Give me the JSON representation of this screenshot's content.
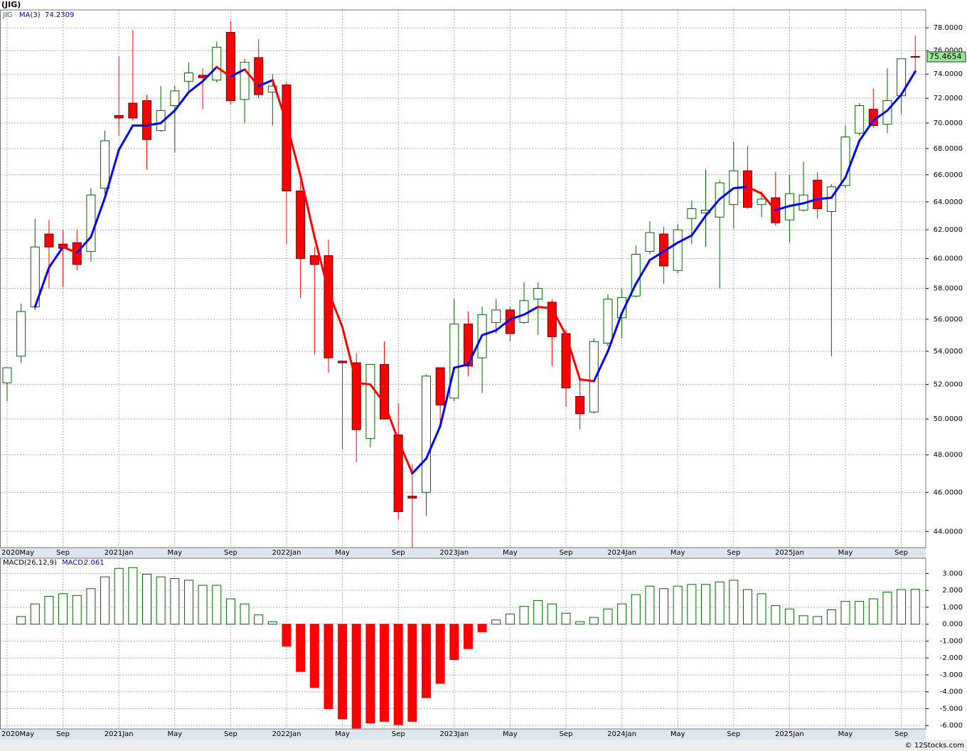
{
  "chart_data": [
    {
      "type": "candlestick",
      "title": "(JIG)",
      "symbol": "JIG",
      "categories": [
        "2020May",
        null,
        null,
        null,
        "Sep",
        null,
        null,
        null,
        "2021Jan",
        null,
        null,
        null,
        "May",
        null,
        null,
        null,
        "Sep",
        null,
        null,
        null,
        "2022Jan",
        null,
        null,
        null,
        "May",
        null,
        null,
        null,
        "Sep",
        null,
        null,
        null,
        "2023Jan",
        null,
        null,
        null,
        "May",
        null,
        null,
        null,
        "Sep",
        null,
        null,
        null,
        "2024Jan",
        null,
        null,
        null,
        "May",
        null,
        null,
        null,
        "Sep",
        null,
        null,
        null,
        "2025Jan",
        null,
        null,
        null,
        "May",
        null,
        null,
        null,
        "Sep",
        null
      ],
      "open": [
        52.1,
        53.7,
        56.8,
        61.7,
        61.0,
        61.1,
        60.5,
        65.0,
        70.6,
        71.6,
        71.8,
        69.4,
        71.4,
        73.4,
        73.9,
        73.5,
        77.6,
        71.9,
        75.4,
        72.5,
        73.1,
        64.8,
        60.2,
        60.2,
        53.4,
        53.3,
        48.9,
        53.2,
        49.1,
        45.8,
        46.0,
        53.0,
        51.2,
        55.7,
        53.6,
        55.8,
        56.6,
        55.8,
        57.3,
        57.1,
        55.1,
        51.3,
        50.4,
        54.5,
        56.1,
        57.5,
        60.5,
        61.7,
        59.2,
        62.8,
        63.2,
        62.9,
        63.8,
        66.3,
        63.8,
        64.3,
        62.7,
        63.4,
        65.6,
        63.3,
        65.2,
        69.2,
        71.1,
        69.9,
        72.2,
        75.5
      ],
      "high": [
        53.0,
        57.0,
        62.8,
        62.7,
        62.0,
        62.0,
        65.0,
        69.4,
        75.5,
        77.8,
        72.3,
        73.0,
        73.0,
        75.0,
        74.5,
        76.8,
        78.6,
        75.3,
        77.0,
        74.0,
        73.3,
        65.5,
        60.8,
        61.3,
        53.4,
        53.9,
        53.2,
        54.6,
        50.9,
        47.5,
        52.6,
        53.0,
        57.3,
        56.5,
        56.8,
        57.3,
        56.8,
        58.4,
        58.4,
        57.3,
        55.4,
        52.3,
        54.8,
        57.6,
        58.0,
        60.9,
        62.6,
        62.2,
        62.4,
        64.1,
        66.4,
        65.6,
        68.5,
        68.2,
        64.8,
        66.2,
        66.0,
        67.0,
        66.2,
        65.3,
        69.8,
        71.6,
        72.8,
        74.5,
        75.3,
        77.3
      ],
      "low": [
        51.0,
        53.3,
        56.6,
        58.0,
        58.1,
        59.2,
        59.8,
        64.6,
        69.0,
        70.2,
        66.4,
        69.3,
        67.7,
        72.6,
        71.1,
        73.3,
        71.5,
        70.0,
        72.0,
        69.8,
        61.0,
        57.4,
        53.8,
        52.7,
        48.3,
        47.6,
        48.4,
        50.0,
        44.6,
        43.2,
        44.8,
        49.6,
        51.0,
        52.5,
        51.5,
        55.1,
        54.6,
        55.7,
        55.0,
        53.1,
        50.7,
        49.4,
        50.3,
        54.3,
        54.8,
        57.4,
        60.3,
        58.3,
        59.0,
        61.0,
        60.8,
        58.0,
        62.1,
        63.5,
        62.9,
        62.3,
        61.1,
        63.3,
        62.8,
        53.7,
        65.0,
        69.0,
        69.6,
        69.2,
        70.7,
        74.0
      ],
      "close": [
        53.0,
        56.5,
        60.8,
        60.8,
        60.7,
        59.6,
        64.5,
        68.6,
        70.4,
        70.4,
        68.7,
        71.0,
        72.6,
        74.1,
        73.7,
        76.3,
        71.8,
        75.0,
        72.3,
        73.0,
        64.8,
        60.0,
        59.6,
        53.6,
        53.3,
        49.4,
        53.2,
        50.0,
        45.0,
        45.7,
        52.5,
        50.8,
        55.7,
        53.1,
        56.3,
        56.6,
        55.1,
        57.2,
        58.0,
        54.9,
        51.8,
        50.3,
        54.6,
        57.3,
        57.4,
        60.3,
        61.8,
        59.5,
        62.0,
        63.5,
        63.4,
        65.4,
        66.3,
        63.6,
        64.2,
        62.5,
        64.6,
        64.5,
        63.5,
        65.1,
        68.9,
        71.4,
        69.8,
        71.8,
        75.3,
        75.4654
      ],
      "up_color": "#006400",
      "down_color": "#ff0000",
      "last_price_color": "#98e898",
      "ma": {
        "name": "MA(3)",
        "up_color": "#0000ff",
        "down_color": "#ff0000",
        "values": [
          null,
          null,
          56.8,
          59.4,
          60.8,
          60.4,
          61.5,
          64.3,
          67.9,
          69.8,
          69.8,
          70.0,
          71.0,
          72.5,
          73.4,
          74.6,
          73.8,
          74.4,
          73.0,
          73.5,
          70.0,
          65.9,
          61.5,
          57.8,
          55.5,
          52.1,
          52.0,
          50.9,
          48.8,
          47.0,
          47.8,
          49.6,
          53.0,
          53.2,
          55.0,
          55.3,
          56.0,
          56.3,
          56.8,
          56.7,
          55.0,
          52.3,
          52.2,
          54.0,
          56.4,
          58.3,
          59.9,
          60.5,
          61.1,
          61.6,
          63.0,
          64.2,
          65.0,
          65.1,
          64.6,
          63.4,
          63.7,
          63.9,
          64.2,
          64.3,
          65.8,
          68.6,
          70.2,
          71.0,
          72.3,
          74.2309
        ]
      },
      "ylim": [
        43.2,
        79.6
      ],
      "log_scale": true,
      "grid": true,
      "yticks": [
        {
          "value": 44,
          "label": "44.0000"
        },
        {
          "value": 46,
          "label": "46.0000"
        },
        {
          "value": 48,
          "label": "48.0000"
        },
        {
          "value": 50,
          "label": "50.0000"
        },
        {
          "value": 52,
          "label": "52.0000"
        },
        {
          "value": 54,
          "label": "54.0000"
        },
        {
          "value": 56,
          "label": "56.0000"
        },
        {
          "value": 58,
          "label": "58.0000"
        },
        {
          "value": 60,
          "label": "60.0000"
        },
        {
          "value": 62,
          "label": "62.0000"
        },
        {
          "value": 64,
          "label": "64.0000"
        },
        {
          "value": 66,
          "label": "66.0000"
        },
        {
          "value": 68,
          "label": "68.0000"
        },
        {
          "value": 70,
          "label": "70.0000"
        },
        {
          "value": 72,
          "label": "72.0000"
        },
        {
          "value": 74,
          "label": "74.0000"
        },
        {
          "value": 76,
          "label": "76.0000"
        },
        {
          "value": 78,
          "label": "78.0000"
        }
      ]
    },
    {
      "type": "bar",
      "title": "MACD(26,12,9)",
      "value_name": "MACD:",
      "values": [
        null,
        0.45,
        1.2,
        1.65,
        1.8,
        1.7,
        2.1,
        2.8,
        3.3,
        3.35,
        2.95,
        2.8,
        2.7,
        2.6,
        2.3,
        2.3,
        1.5,
        1.2,
        0.55,
        0.15,
        -1.3,
        -2.8,
        -3.75,
        -5.0,
        -5.6,
        -6.15,
        -5.85,
        -5.75,
        -5.95,
        -5.75,
        -4.35,
        -3.5,
        -2.1,
        -1.45,
        -0.45,
        0.25,
        0.6,
        1.05,
        1.4,
        1.2,
        0.65,
        0.15,
        0.4,
        0.9,
        1.2,
        1.75,
        2.25,
        2.1,
        2.25,
        2.35,
        2.35,
        2.5,
        2.6,
        2.05,
        1.8,
        1.1,
        0.9,
        0.5,
        0.45,
        0.85,
        1.35,
        1.35,
        1.5,
        1.9,
        2.05,
        2.061
      ],
      "up_color": "#006400",
      "down_color": "#ff0000",
      "ylim": [
        -6.2,
        3.9
      ],
      "grid": true,
      "yticks": [
        {
          "value": 3,
          "label": "3.000"
        },
        {
          "value": 2,
          "label": "2.000"
        },
        {
          "value": 1,
          "label": "1.000"
        },
        {
          "value": 0,
          "label": "0.000"
        },
        {
          "value": -1,
          "label": "-1.000"
        },
        {
          "value": -2,
          "label": "-2.000"
        },
        {
          "value": -3,
          "label": "-3.000"
        },
        {
          "value": -4,
          "label": "-4.000"
        },
        {
          "value": -5,
          "label": "-5.000"
        },
        {
          "value": -6,
          "label": "-6.000"
        }
      ]
    }
  ],
  "footer": "© 12Stocks.com"
}
